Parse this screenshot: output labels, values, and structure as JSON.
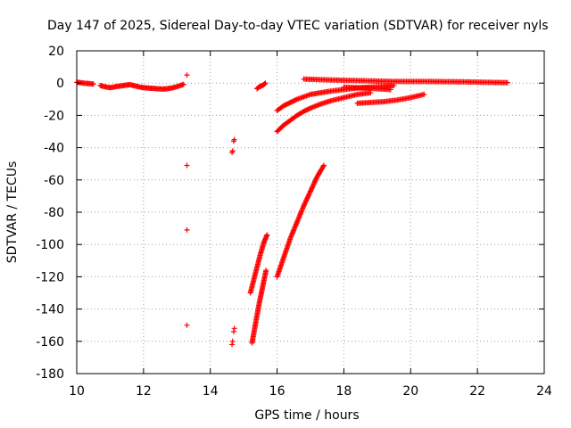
{
  "chart_data": {
    "type": "scatter",
    "title": "Day 147 of 2025, Sidereal Day-to-day VTEC variation (SDTVAR) for receiver nyls",
    "xlabel": "GPS time / hours",
    "ylabel": "SDTVAR / TECUs",
    "xlim": [
      10,
      24
    ],
    "ylim": [
      -180,
      20
    ],
    "xticks": [
      10,
      12,
      14,
      16,
      18,
      20,
      22,
      24
    ],
    "yticks": [
      -180,
      -160,
      -140,
      -120,
      -100,
      -80,
      -60,
      -40,
      -20,
      0,
      20
    ],
    "grid": true,
    "legend": "none",
    "marker": "plus",
    "color": "#ff0000",
    "series": [
      {
        "x": [
          10.0,
          10.1,
          10.2,
          10.3,
          10.4,
          10.5
        ],
        "y": [
          0.5,
          0.3,
          0.0,
          -0.2,
          -0.4,
          -0.6
        ]
      },
      {
        "x": [
          10.7,
          10.8,
          10.9,
          11.0,
          11.1,
          11.2,
          11.3,
          11.4,
          11.5,
          11.6,
          11.7,
          11.8,
          11.9,
          12.0,
          12.1,
          12.2,
          12.3,
          12.4,
          12.5,
          12.6,
          12.7,
          12.8,
          12.9,
          13.0,
          13.1,
          13.2
        ],
        "y": [
          -1.5,
          -2.0,
          -2.5,
          -2.8,
          -2.5,
          -2.0,
          -1.8,
          -1.5,
          -1.2,
          -1.0,
          -1.5,
          -2.0,
          -2.5,
          -2.8,
          -3.0,
          -3.2,
          -3.3,
          -3.5,
          -3.6,
          -3.7,
          -3.5,
          -3.2,
          -2.8,
          -2.2,
          -1.5,
          -0.8
        ]
      },
      {
        "x": [
          13.3,
          13.3,
          13.3,
          13.3
        ],
        "y": [
          5,
          -51,
          -91,
          -150
        ]
      },
      {
        "x": [
          14.65,
          14.67,
          14.7,
          14.72,
          14.65,
          14.67,
          14.7,
          14.72
        ],
        "y": [
          -43,
          -42,
          -36,
          -35,
          -162,
          -160,
          -154,
          -152
        ]
      },
      {
        "x": [
          15.4,
          15.45,
          15.5,
          15.55,
          15.6,
          15.65
        ],
        "y": [
          -3.5,
          -2.5,
          -2.0,
          -1.5,
          -1.0,
          0.0
        ]
      },
      {
        "x": [
          15.2,
          15.3,
          15.4,
          15.5,
          15.6,
          15.7
        ],
        "y": [
          -130,
          -122,
          -114,
          -106,
          -99,
          -94
        ]
      },
      {
        "x": [
          15.25,
          15.32,
          15.39,
          15.46,
          15.53,
          15.6,
          15.67
        ],
        "y": [
          -161,
          -153,
          -145,
          -137,
          -130,
          -123,
          -116
        ]
      },
      {
        "x": [
          16.0,
          16.2,
          16.4,
          16.6,
          16.8,
          17.0,
          17.2,
          17.4
        ],
        "y": [
          -120,
          -108,
          -96,
          -86,
          -76,
          -67,
          -58,
          -51
        ]
      },
      {
        "x": [
          16.0,
          16.2,
          16.4,
          16.6,
          16.8,
          17.0,
          17.3,
          17.6,
          18.0,
          18.4,
          18.8,
          19.2,
          19.5
        ],
        "y": [
          -17,
          -14,
          -12,
          -10,
          -8.5,
          -7,
          -6,
          -5,
          -4,
          -3,
          -2.5,
          -2,
          -1.5
        ]
      },
      {
        "x": [
          16.0,
          16.2,
          16.4,
          16.6,
          16.8,
          17.0,
          17.3,
          17.6,
          18.0,
          18.4,
          18.8
        ],
        "y": [
          -30,
          -26,
          -23,
          -20,
          -17.5,
          -15.5,
          -13,
          -11,
          -9,
          -7,
          -6
        ]
      },
      {
        "x": [
          16.8,
          17.5,
          18.5,
          19.5,
          20.5,
          21.5,
          22.0,
          22.5,
          22.9
        ],
        "y": [
          2.5,
          2.0,
          1.5,
          1.0,
          1.0,
          0.8,
          0.6,
          0.4,
          0.3
        ]
      },
      {
        "x": [
          18.4,
          18.8,
          19.2,
          19.6,
          20.0,
          20.4
        ],
        "y": [
          -12.5,
          -12.0,
          -11.5,
          -10.5,
          -9.0,
          -7.0
        ]
      },
      {
        "x": [
          18.0,
          18.5,
          19.0,
          19.4
        ],
        "y": [
          -2.5,
          -3.0,
          -3.5,
          -4.0
        ]
      }
    ]
  }
}
